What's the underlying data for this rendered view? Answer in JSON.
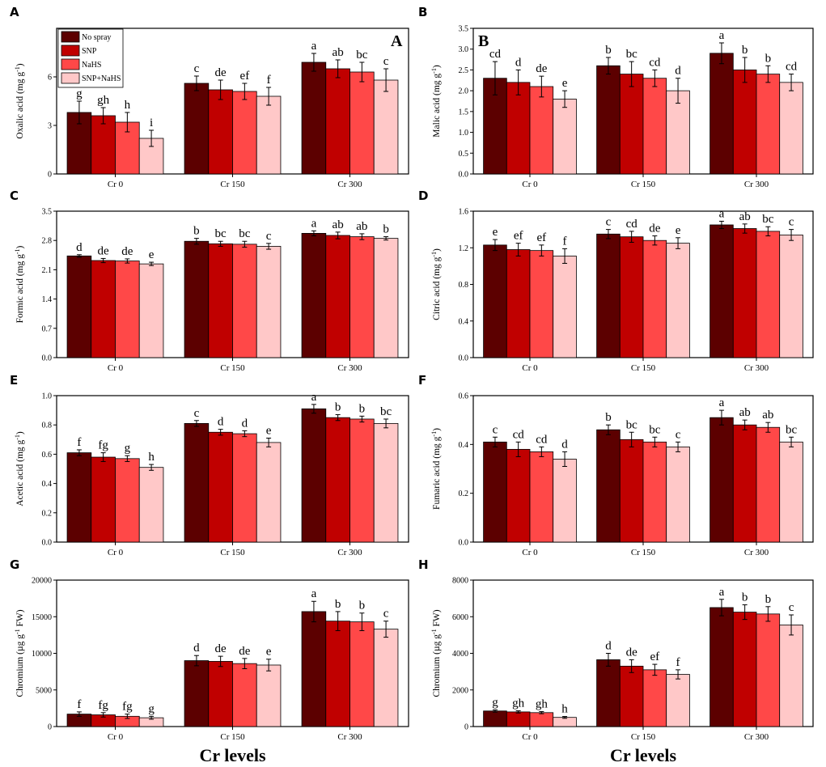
{
  "series_colors": [
    "#5c0000",
    "#c00000",
    "#ff4848",
    "#ffc8c8"
  ],
  "legend": {
    "entries": [
      "No spray",
      "SNP",
      "NaHS",
      "SNP+NaHS"
    ]
  },
  "xlabel_common": "Cr levels",
  "chart_data": [
    {
      "type": "bar",
      "panel": "A",
      "inner_label": "A",
      "ylabel": "Oxalic acid (mg g-1)",
      "ylabel_main": "Oxalic acid (mg g",
      "ylabel_sup": "-1",
      "ylabel_tail": ")",
      "categories": [
        "Cr 0",
        "Cr 150",
        "Cr 300"
      ],
      "ylim": [
        0,
        9
      ],
      "yticks": [
        0,
        3,
        6
      ],
      "series": [
        {
          "name": "No spray",
          "values": [
            3.8,
            5.6,
            6.9
          ],
          "errors": [
            0.7,
            0.45,
            0.55
          ],
          "letters": [
            "g",
            "c",
            "a"
          ]
        },
        {
          "name": "SNP",
          "values": [
            3.6,
            5.2,
            6.5
          ],
          "errors": [
            0.5,
            0.6,
            0.55
          ],
          "letters": [
            "gh",
            "de",
            "ab"
          ]
        },
        {
          "name": "NaHS",
          "values": [
            3.2,
            5.1,
            6.3
          ],
          "errors": [
            0.6,
            0.5,
            0.6
          ],
          "letters": [
            "h",
            "ef",
            "bc"
          ]
        },
        {
          "name": "SNP+NaHS",
          "values": [
            2.2,
            4.8,
            5.8
          ],
          "errors": [
            0.5,
            0.55,
            0.7
          ],
          "letters": [
            "i",
            "f",
            "c"
          ]
        }
      ],
      "legend": true
    },
    {
      "type": "bar",
      "panel": "B",
      "inner_label": "B",
      "ylabel": "Malic acid (mg g-1)",
      "ylabel_main": "Malic acid (mg g",
      "ylabel_sup": "-1",
      "ylabel_tail": ")",
      "categories": [
        "Cr 0",
        "Cr 150",
        "Cr 300"
      ],
      "ylim": [
        0,
        3.5
      ],
      "yticks": [
        0.0,
        0.5,
        1.0,
        1.5,
        2.0,
        2.5,
        3.0,
        3.5
      ],
      "series": [
        {
          "name": "No spray",
          "values": [
            2.3,
            2.6,
            2.9
          ],
          "errors": [
            0.4,
            0.2,
            0.25
          ],
          "letters": [
            "cd",
            "b",
            "a"
          ]
        },
        {
          "name": "SNP",
          "values": [
            2.2,
            2.4,
            2.5
          ],
          "errors": [
            0.3,
            0.3,
            0.3
          ],
          "letters": [
            "d",
            "bc",
            "b"
          ]
        },
        {
          "name": "NaHS",
          "values": [
            2.1,
            2.3,
            2.4
          ],
          "errors": [
            0.25,
            0.2,
            0.2
          ],
          "letters": [
            "de",
            "cd",
            "b"
          ]
        },
        {
          "name": "SNP+NaHS",
          "values": [
            1.8,
            2.0,
            2.2
          ],
          "errors": [
            0.2,
            0.3,
            0.2
          ],
          "letters": [
            "e",
            "d",
            "cd"
          ]
        }
      ]
    },
    {
      "type": "bar",
      "panel": "C",
      "ylabel": "Formic acid (mg g-1)",
      "ylabel_main": "Formic acid (mg g",
      "ylabel_sup": "-1",
      "ylabel_tail": ")",
      "categories": [
        "Cr 0",
        "Cr 150",
        "Cr 300"
      ],
      "ylim": [
        0,
        3.5
      ],
      "yticks": [
        0.0,
        0.7,
        1.4,
        2.1,
        2.8,
        3.5
      ],
      "series": [
        {
          "name": "No spray",
          "values": [
            2.43,
            2.78,
            2.97
          ],
          "errors": [
            0.03,
            0.07,
            0.06
          ],
          "letters": [
            "d",
            "b",
            "a"
          ]
        },
        {
          "name": "SNP",
          "values": [
            2.32,
            2.72,
            2.92
          ],
          "errors": [
            0.05,
            0.06,
            0.08
          ],
          "letters": [
            "de",
            "bc",
            "ab"
          ]
        },
        {
          "name": "NaHS",
          "values": [
            2.31,
            2.71,
            2.89
          ],
          "errors": [
            0.05,
            0.07,
            0.07
          ],
          "letters": [
            "de",
            "bc",
            "ab"
          ]
        },
        {
          "name": "SNP+NaHS",
          "values": [
            2.24,
            2.66,
            2.85
          ],
          "errors": [
            0.04,
            0.07,
            0.04
          ],
          "letters": [
            "e",
            "c",
            "b"
          ]
        }
      ]
    },
    {
      "type": "bar",
      "panel": "D",
      "ylabel": "Citric acid (mg g-1)",
      "ylabel_main": "Citric acid (mg g",
      "ylabel_sup": "-1",
      "ylabel_tail": ")",
      "categories": [
        "Cr 0",
        "Cr 150",
        "Cr 300"
      ],
      "ylim": [
        0,
        1.6
      ],
      "yticks": [
        0.0,
        0.4,
        0.8,
        1.2,
        1.6
      ],
      "series": [
        {
          "name": "No spray",
          "values": [
            1.23,
            1.35,
            1.45
          ],
          "errors": [
            0.06,
            0.05,
            0.04
          ],
          "letters": [
            "e",
            "c",
            "a"
          ]
        },
        {
          "name": "SNP",
          "values": [
            1.18,
            1.32,
            1.41
          ],
          "errors": [
            0.07,
            0.06,
            0.05
          ],
          "letters": [
            "ef",
            "cd",
            "ab"
          ]
        },
        {
          "name": "NaHS",
          "values": [
            1.17,
            1.28,
            1.38
          ],
          "errors": [
            0.06,
            0.05,
            0.05
          ],
          "letters": [
            "ef",
            "de",
            "bc"
          ]
        },
        {
          "name": "SNP+NaHS",
          "values": [
            1.11,
            1.25,
            1.34
          ],
          "errors": [
            0.08,
            0.06,
            0.06
          ],
          "letters": [
            "f",
            "e",
            "c"
          ]
        }
      ]
    },
    {
      "type": "bar",
      "panel": "E",
      "ylabel": "Acetic acid (mg g-1)",
      "ylabel_main": "Acetic acid (mg g",
      "ylabel_sup": "-1",
      "ylabel_tail": ")",
      "categories": [
        "Cr 0",
        "Cr 150",
        "Cr 300"
      ],
      "ylim": [
        0,
        1.0
      ],
      "yticks": [
        0.0,
        0.2,
        0.4,
        0.6,
        0.8,
        1.0
      ],
      "series": [
        {
          "name": "No spray",
          "values": [
            0.61,
            0.81,
            0.91
          ],
          "errors": [
            0.02,
            0.02,
            0.03
          ],
          "letters": [
            "f",
            "c",
            "a"
          ]
        },
        {
          "name": "SNP",
          "values": [
            0.58,
            0.75,
            0.85
          ],
          "errors": [
            0.03,
            0.02,
            0.02
          ],
          "letters": [
            "fg",
            "d",
            "b"
          ]
        },
        {
          "name": "NaHS",
          "values": [
            0.57,
            0.74,
            0.84
          ],
          "errors": [
            0.02,
            0.02,
            0.02
          ],
          "letters": [
            "g",
            "d",
            "b"
          ]
        },
        {
          "name": "SNP+NaHS",
          "values": [
            0.51,
            0.68,
            0.81
          ],
          "errors": [
            0.02,
            0.03,
            0.03
          ],
          "letters": [
            "h",
            "e",
            "bc"
          ]
        }
      ]
    },
    {
      "type": "bar",
      "panel": "F",
      "ylabel": "Fumaric acid (mg g-1)",
      "ylabel_main": "Fumaric acid (mg g",
      "ylabel_sup": "-1",
      "ylabel_tail": ")",
      "categories": [
        "Cr 0",
        "Cr 150",
        "Cr 300"
      ],
      "ylim": [
        0,
        0.6
      ],
      "yticks": [
        0.0,
        0.2,
        0.4,
        0.6
      ],
      "series": [
        {
          "name": "No spray",
          "values": [
            0.41,
            0.46,
            0.51
          ],
          "errors": [
            0.02,
            0.02,
            0.03
          ],
          "letters": [
            "c",
            "b",
            "a"
          ]
        },
        {
          "name": "SNP",
          "values": [
            0.38,
            0.42,
            0.48
          ],
          "errors": [
            0.03,
            0.03,
            0.02
          ],
          "letters": [
            "cd",
            "bc",
            "ab"
          ]
        },
        {
          "name": "NaHS",
          "values": [
            0.37,
            0.41,
            0.47
          ],
          "errors": [
            0.02,
            0.02,
            0.02
          ],
          "letters": [
            "cd",
            "bc",
            "ab"
          ]
        },
        {
          "name": "SNP+NaHS",
          "values": [
            0.34,
            0.39,
            0.41
          ],
          "errors": [
            0.03,
            0.02,
            0.02
          ],
          "letters": [
            "d",
            "c",
            "bc"
          ]
        }
      ]
    },
    {
      "type": "bar",
      "panel": "G",
      "ylabel": "Chromium (µg g-1 FW)",
      "ylabel_main": "Chromium (µg g",
      "ylabel_sup": "-1",
      "ylabel_tail": " FW)",
      "categories": [
        "Cr 0",
        "Cr 150",
        "Cr 300"
      ],
      "ylim": [
        0,
        20000
      ],
      "yticks": [
        0,
        5000,
        10000,
        15000,
        20000
      ],
      "series": [
        {
          "name": "No spray",
          "values": [
            1700,
            9000,
            15700
          ],
          "errors": [
            300,
            700,
            1400
          ],
          "letters": [
            "f",
            "d",
            "a"
          ]
        },
        {
          "name": "SNP",
          "values": [
            1600,
            8900,
            14400
          ],
          "errors": [
            300,
            700,
            1300
          ],
          "letters": [
            "fg",
            "de",
            "b"
          ]
        },
        {
          "name": "NaHS",
          "values": [
            1400,
            8600,
            14300
          ],
          "errors": [
            300,
            700,
            1200
          ],
          "letters": [
            "fg",
            "de",
            "b"
          ]
        },
        {
          "name": "SNP+NaHS",
          "values": [
            1200,
            8400,
            13300
          ],
          "errors": [
            200,
            800,
            1100
          ],
          "letters": [
            "g",
            "e",
            "c"
          ]
        }
      ],
      "xlabel": "Cr levels"
    },
    {
      "type": "bar",
      "panel": "H",
      "ylabel": "Chromium (µg g-1 FW)",
      "ylabel_main": "Chromium (µg g",
      "ylabel_sup": "-1",
      "ylabel_tail": " FW)",
      "categories": [
        "Cr 0",
        "Cr 150",
        "Cr 300"
      ],
      "ylim": [
        0,
        8000
      ],
      "yticks": [
        0,
        2000,
        4000,
        6000,
        8000
      ],
      "series": [
        {
          "name": "No spray",
          "values": [
            850,
            3650,
            6500
          ],
          "errors": [
            60,
            350,
            450
          ],
          "letters": [
            "g",
            "d",
            "a"
          ]
        },
        {
          "name": "SNP",
          "values": [
            800,
            3300,
            6250
          ],
          "errors": [
            60,
            350,
            400
          ],
          "letters": [
            "gh",
            "de",
            "b"
          ]
        },
        {
          "name": "NaHS",
          "values": [
            760,
            3100,
            6150
          ],
          "errors": [
            60,
            300,
            400
          ],
          "letters": [
            "gh",
            "ef",
            "b"
          ]
        },
        {
          "name": "SNP+NaHS",
          "values": [
            500,
            2850,
            5550
          ],
          "errors": [
            50,
            250,
            550
          ],
          "letters": [
            "h",
            "f",
            "c"
          ]
        }
      ],
      "xlabel": "Cr levels"
    }
  ]
}
